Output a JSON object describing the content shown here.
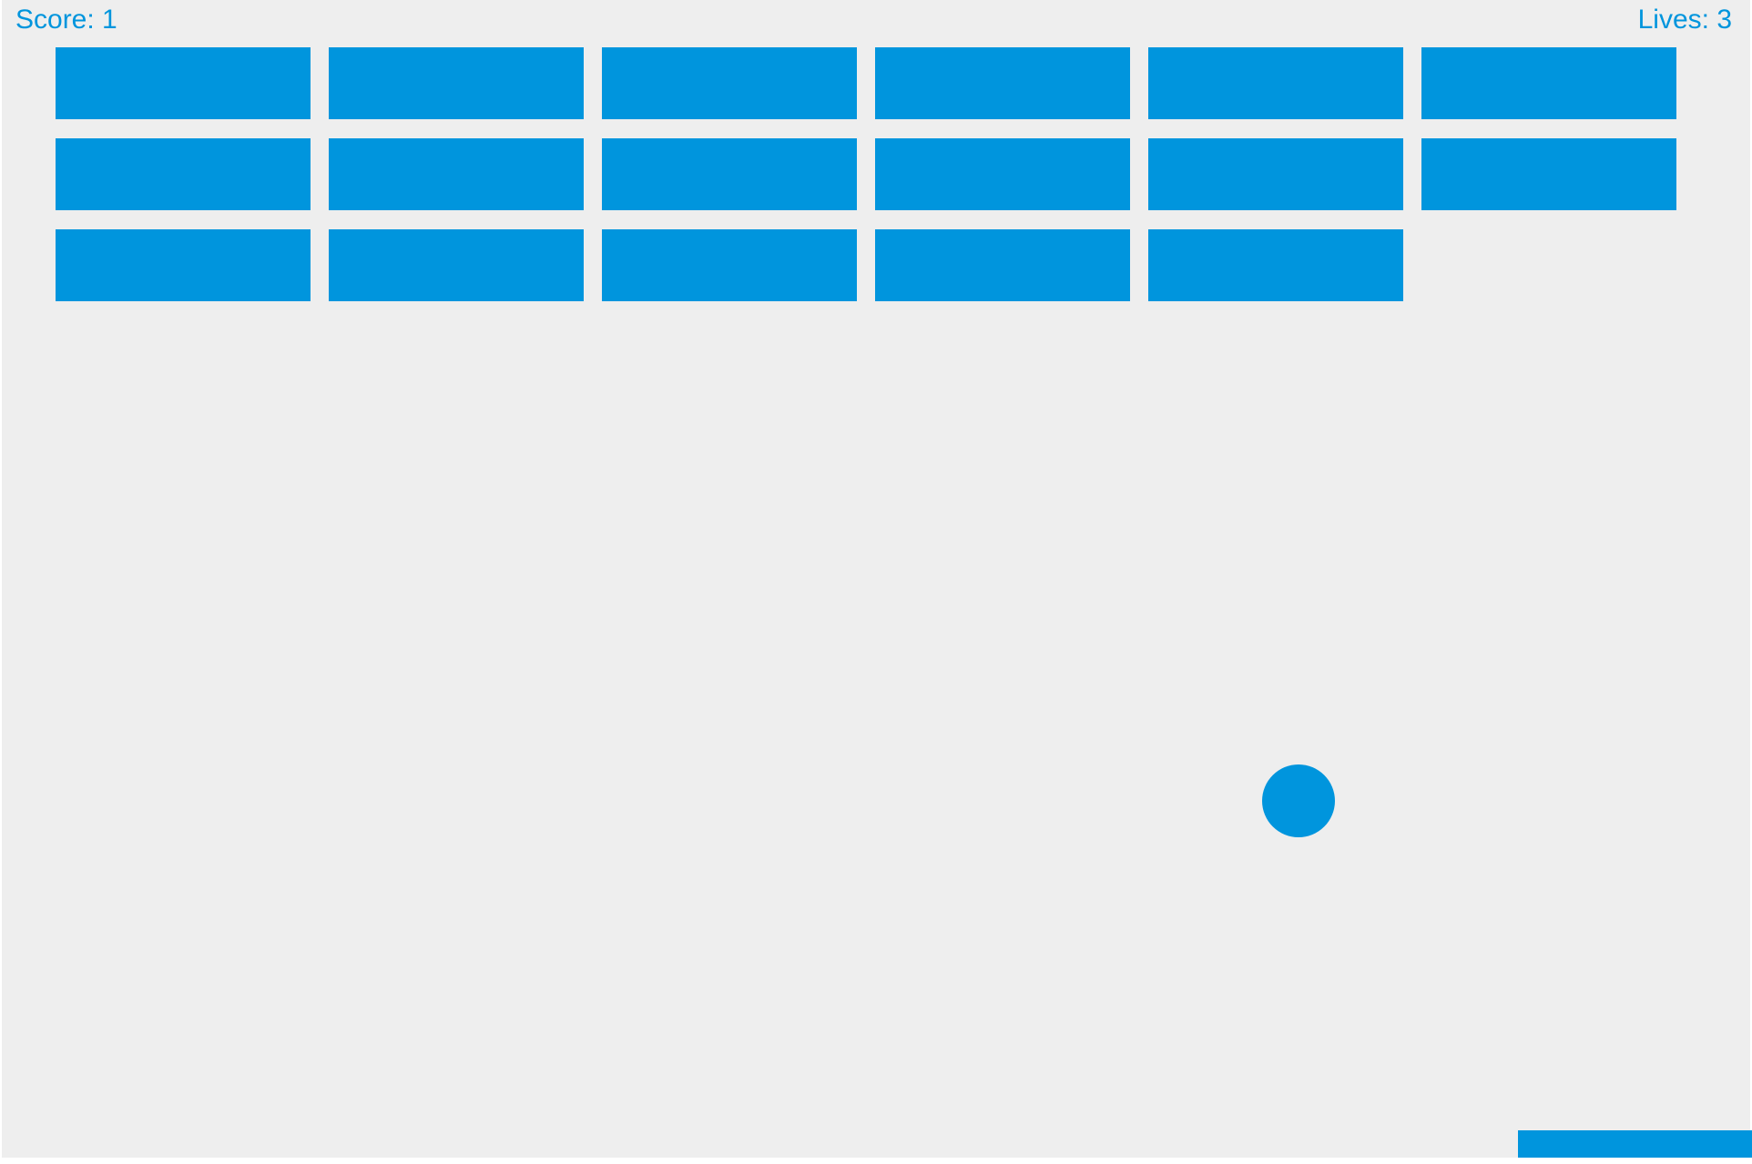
{
  "hud": {
    "score_text": "Score: 1",
    "lives_text": "Lives: 3"
  },
  "game": {
    "score": 1,
    "lives": 3,
    "brick_grid": {
      "rows": 3,
      "columns": 6,
      "bricks_intact": [
        [
          true,
          true,
          true,
          true,
          true,
          true
        ],
        [
          true,
          true,
          true,
          true,
          true,
          true
        ],
        [
          true,
          true,
          true,
          true,
          true,
          false
        ]
      ]
    }
  },
  "colors": {
    "accent": "#0095DD",
    "field_background": "#EEEEEE",
    "page_background": "#FFFFFF"
  }
}
